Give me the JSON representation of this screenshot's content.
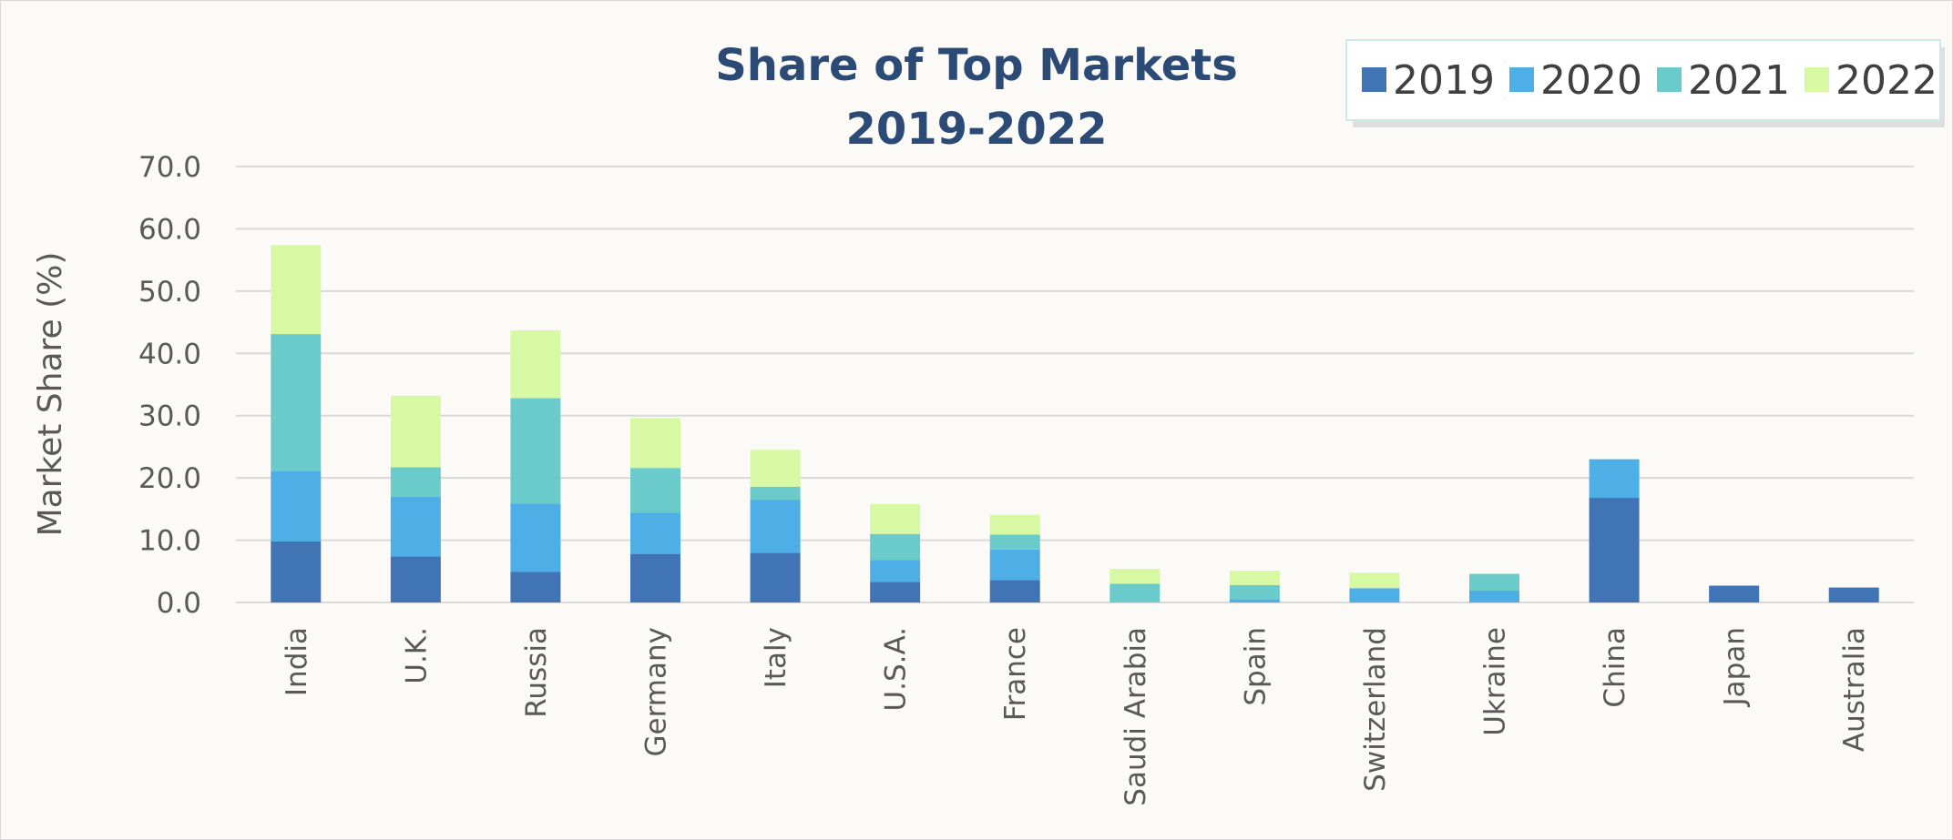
{
  "chart_data": {
    "type": "bar",
    "stacked": true,
    "title": [
      "Share of Top Markets",
      "2019-2022"
    ],
    "xlabel": "",
    "ylabel": "Market Share (%)",
    "ylim": [
      0,
      70
    ],
    "yticks": [
      "0.0",
      "10.0",
      "20.0",
      "30.0",
      "40.0",
      "50.0",
      "60.0",
      "70.0"
    ],
    "grid": true,
    "legend_position": "top-right",
    "categories": [
      "India",
      "U.K.",
      "Russia",
      "Germany",
      "Italy",
      "U.S.A.",
      "France",
      "Saudi Arabia",
      "Spain",
      "Switzerland",
      "Ukraine",
      "China",
      "Japan",
      "Australia"
    ],
    "series": [
      {
        "name": "2019",
        "color": "#4174b4",
        "values": [
          9.8,
          7.4,
          4.9,
          7.8,
          8.0,
          3.3,
          3.6,
          0.0,
          0.0,
          0.0,
          0.0,
          16.8,
          2.7,
          2.4
        ]
      },
      {
        "name": "2020",
        "color": "#4eaee6",
        "values": [
          11.3,
          9.6,
          11.0,
          6.6,
          8.5,
          3.5,
          4.9,
          0.0,
          0.5,
          2.3,
          1.9,
          6.2,
          0.0,
          0.0
        ]
      },
      {
        "name": "2021",
        "color": "#6bcbcb",
        "values": [
          22.0,
          4.7,
          16.9,
          7.2,
          2.1,
          4.2,
          2.4,
          3.0,
          2.3,
          0.0,
          2.7,
          0.0,
          0.0,
          0.0
        ]
      },
      {
        "name": "2022",
        "color": "#d8f9a3",
        "values": [
          14.3,
          11.5,
          10.9,
          8.0,
          5.9,
          4.8,
          3.2,
          2.4,
          2.3,
          2.5,
          0.0,
          0.0,
          0.0,
          0.0
        ]
      }
    ]
  }
}
